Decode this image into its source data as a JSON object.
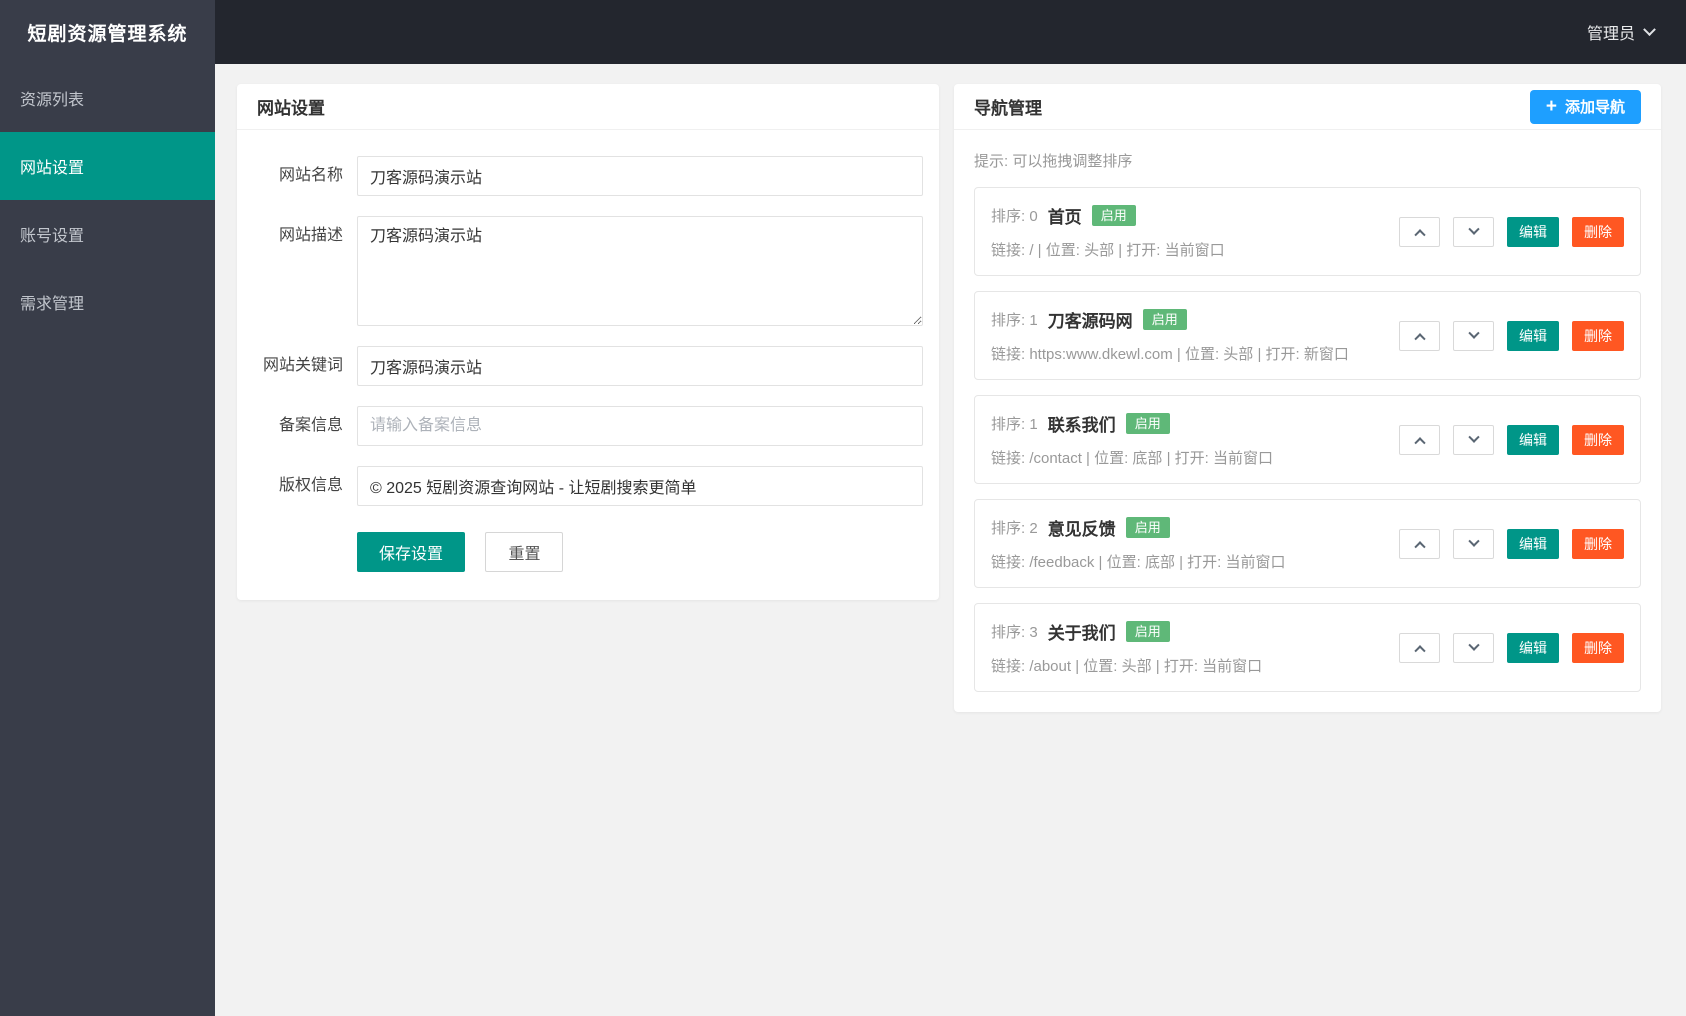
{
  "topbar": {
    "logo": "短剧资源管理系统",
    "user": "管理员"
  },
  "sidebar": {
    "items": [
      {
        "label": "资源列表",
        "active": false
      },
      {
        "label": "网站设置",
        "active": true
      },
      {
        "label": "账号设置",
        "active": false
      },
      {
        "label": "需求管理",
        "active": false
      }
    ]
  },
  "site_settings": {
    "title": "网站设置",
    "fields": [
      {
        "label": "网站名称",
        "type": "input",
        "value": "刀客源码演示站"
      },
      {
        "label": "网站描述",
        "type": "textarea",
        "value": "刀客源码演示站"
      },
      {
        "label": "网站关键词",
        "type": "input",
        "value": "刀客源码演示站"
      },
      {
        "label": "备案信息",
        "type": "input",
        "value": "",
        "placeholder": "请输入备案信息"
      },
      {
        "label": "版权信息",
        "type": "input",
        "value": "© 2025 短剧资源查询网站 - 让短剧搜索更简单"
      }
    ],
    "save_label": "保存设置",
    "reset_label": "重置"
  },
  "nav_management": {
    "title": "导航管理",
    "add_label": "添加导航",
    "tip": "提示: 可以拖拽调整排序",
    "enabled_label": "启用",
    "edit_label": "编辑",
    "delete_label": "删除",
    "items": [
      {
        "sort_label": "排序: 0",
        "title": "首页",
        "status": "启用",
        "meta": "链接: / | 位置: 头部 | 打开: 当前窗口"
      },
      {
        "sort_label": "排序: 1",
        "title": "刀客源码网",
        "status": "启用",
        "meta": "链接: https:www.dkewl.com | 位置: 头部 | 打开: 新窗口"
      },
      {
        "sort_label": "排序: 1",
        "title": "联系我们",
        "status": "启用",
        "meta": "链接: /contact | 位置: 底部 | 打开: 当前窗口"
      },
      {
        "sort_label": "排序: 2",
        "title": "意见反馈",
        "status": "启用",
        "meta": "链接: /feedback | 位置: 底部 | 打开: 当前窗口"
      },
      {
        "sort_label": "排序: 3",
        "title": "关于我们",
        "status": "启用",
        "meta": "链接: /about | 位置: 头部 | 打开: 当前窗口"
      }
    ]
  },
  "colors": {
    "accent_teal": "#009688",
    "accent_blue": "#1e9fff",
    "badge_green": "#5fb878",
    "danger_red": "#ff5722",
    "topbar_dark": "#23262e",
    "sidebar_dark": "#393d49"
  }
}
